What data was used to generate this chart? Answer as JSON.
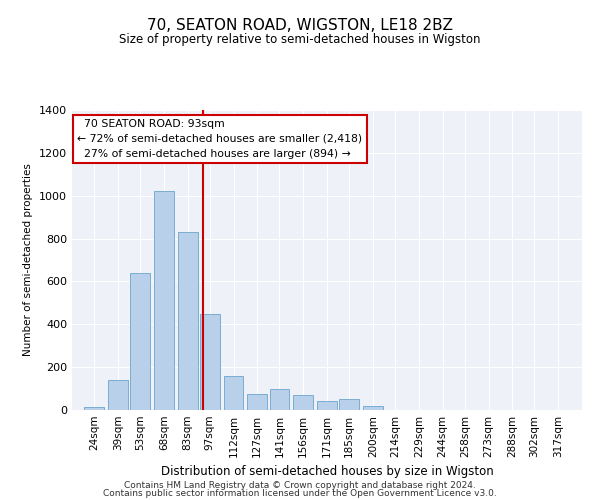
{
  "title": "70, SEATON ROAD, WIGSTON, LE18 2BZ",
  "subtitle": "Size of property relative to semi-detached houses in Wigston",
  "xlabel": "Distribution of semi-detached houses by size in Wigston",
  "ylabel": "Number of semi-detached properties",
  "footnote1": "Contains HM Land Registry data © Crown copyright and database right 2024.",
  "footnote2": "Contains public sector information licensed under the Open Government Licence v3.0.",
  "annotation_title": "70 SEATON ROAD: 93sqm",
  "annotation_line1": "← 72% of semi-detached houses are smaller (2,418)",
  "annotation_line2": "27% of semi-detached houses are larger (894) →",
  "property_size": 93,
  "categories": [
    "24sqm",
    "39sqm",
    "53sqm",
    "68sqm",
    "83sqm",
    "97sqm",
    "112sqm",
    "127sqm",
    "141sqm",
    "156sqm",
    "171sqm",
    "185sqm",
    "200sqm",
    "214sqm",
    "229sqm",
    "244sqm",
    "258sqm",
    "273sqm",
    "288sqm",
    "302sqm",
    "317sqm"
  ],
  "bin_starts": [
    24,
    39,
    53,
    68,
    83,
    97,
    112,
    127,
    141,
    156,
    171,
    185,
    200,
    214,
    229,
    244,
    258,
    273,
    288,
    302,
    317
  ],
  "values": [
    15,
    140,
    640,
    1020,
    830,
    450,
    160,
    75,
    100,
    70,
    40,
    50,
    20,
    0,
    0,
    0,
    0,
    0,
    0,
    0,
    0
  ],
  "bar_color": "#b8d0ea",
  "bar_edge_color": "#7aadd4",
  "redline_color": "#cc0000",
  "background_color": "#eef2f8",
  "annotation_box_color": "#ffffff",
  "annotation_box_edge": "#cc0000",
  "ylim": [
    0,
    1400
  ],
  "yticks": [
    0,
    200,
    400,
    600,
    800,
    1000,
    1200,
    1400
  ]
}
